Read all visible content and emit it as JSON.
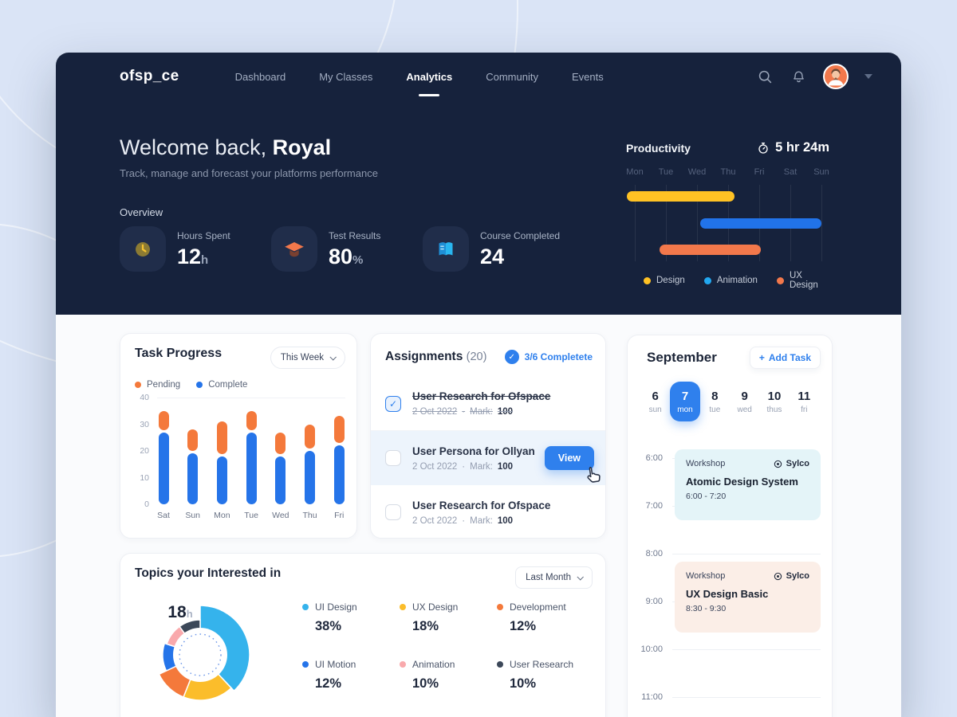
{
  "colors": {
    "accent": "#2F80ED",
    "navy": "#16223C",
    "page_bg": "#DAE4F6"
  },
  "app": {
    "logo": "ofsp_ce",
    "nav": [
      {
        "label": "Dashboard"
      },
      {
        "label": "My Classes"
      },
      {
        "label": "Analytics",
        "active": true
      },
      {
        "label": "Community"
      },
      {
        "label": "Events"
      }
    ]
  },
  "hero": {
    "welcome_prefix": "Welcome back,",
    "welcome_name": "Royal",
    "subtitle": "Track, manage and forecast your platforms performance",
    "overview_label": "Overview",
    "stats": [
      {
        "label": "Hours Spent",
        "value": "12",
        "unit": "h",
        "icon": "clock-icon"
      },
      {
        "label": "Test Results",
        "value": "80",
        "unit": "%",
        "icon": "graduation-cap-icon"
      },
      {
        "label": "Course Completed",
        "value": "24",
        "unit": "",
        "icon": "book-icon"
      }
    ]
  },
  "productivity": {
    "title": "Productivity",
    "duration": "5 hr 24m"
  },
  "task_progress": {
    "title": "Task Progress",
    "filter_label": "This Week",
    "legend": [
      {
        "label": "Pending",
        "color": "#F4793B"
      },
      {
        "label": "Complete",
        "color": "#2574E9"
      }
    ]
  },
  "assignments": {
    "title": "Assignments",
    "count": "(20)",
    "status": "3/6 Completete",
    "items": [
      {
        "title": "User Research for Ofspace",
        "date": "2 Oct 2022",
        "mark_label": "Mark:",
        "mark": "100",
        "completed": true
      },
      {
        "title": "User Persona for Ollyan",
        "date": "2 Oct 2022",
        "mark_label": "Mark:",
        "mark": "100",
        "completed": false,
        "action": "View"
      },
      {
        "title": "User Research for Ofspace",
        "date": "2 Oct 2022",
        "mark_label": "Mark:",
        "mark": "100",
        "completed": false
      }
    ]
  },
  "topics": {
    "title": "Topics your Interested in",
    "filter_label": "Last Month",
    "center_value": "18",
    "center_unit": "h"
  },
  "calendar": {
    "month": "September",
    "add_task_label": "Add Task",
    "days": [
      {
        "num": "6",
        "name": "sun"
      },
      {
        "num": "7",
        "name": "mon",
        "selected": true
      },
      {
        "num": "8",
        "name": "tue"
      },
      {
        "num": "9",
        "name": "wed"
      },
      {
        "num": "10",
        "name": "thus"
      },
      {
        "num": "11",
        "name": "fri"
      }
    ],
    "times": [
      "6:00",
      "7:00",
      "8:00",
      "9:00",
      "10:00",
      "11:00"
    ],
    "events": [
      {
        "tag": "Workshop",
        "location": "Sylco",
        "title": "Atomic Design System",
        "time": "6:00 - 7:20",
        "bg": "#E4F4F8"
      },
      {
        "tag": "Workshop",
        "location": "Sylco",
        "title": "UX Design Basic",
        "time": "8:30 - 9:30",
        "bg": "#FBEEE7"
      }
    ]
  },
  "chart_data": [
    {
      "id": "productivity_gantt",
      "type": "gantt",
      "x": [
        "Mon",
        "Tue",
        "Wed",
        "Thu",
        "Fri",
        "Sat",
        "Sun"
      ],
      "series": [
        {
          "name": "Design",
          "color": "#FFC224",
          "start": -0.25,
          "end": 3.2
        },
        {
          "name": "Animation",
          "color": "#2173E9",
          "start": 2.1,
          "end": 6.0
        },
        {
          "name": "UX Design",
          "color": "#F2784B",
          "start": 0.8,
          "end": 4.05
        }
      ],
      "legend_position": "bottom",
      "legend_dot_colors": [
        "#FFC224",
        "#22A8F0",
        "#F2784B"
      ]
    },
    {
      "id": "task_progress",
      "type": "bar",
      "stacked": true,
      "categories": [
        "Sat",
        "Sun",
        "Mon",
        "Tue",
        "Wed",
        "Thu",
        "Fri"
      ],
      "series": [
        {
          "name": "Complete",
          "color": "#2574E9",
          "values": [
            27,
            19,
            18,
            27,
            18,
            20,
            22
          ]
        },
        {
          "name": "Pending",
          "color": "#F4793B",
          "values": [
            8,
            9,
            13,
            8,
            9,
            10,
            11
          ]
        }
      ],
      "ylim": [
        0,
        40
      ],
      "yticks": [
        0,
        10,
        20,
        30,
        40
      ]
    },
    {
      "id": "topics_donut",
      "type": "pie",
      "donut": true,
      "center_label": "18h",
      "slices": [
        {
          "name": "UI Design",
          "value": 38,
          "pct": "38%",
          "color": "#35B3EC",
          "radius": 62
        },
        {
          "name": "UX Design",
          "value": 18,
          "pct": "18%",
          "color": "#FBBD2B",
          "radius": 57
        },
        {
          "name": "Development",
          "value": 12,
          "pct": "12%",
          "color": "#F4793B",
          "radius": 57
        },
        {
          "name": "UI Motion",
          "value": 12,
          "pct": "12%",
          "color": "#2574E9",
          "radius": 47
        },
        {
          "name": "Animation",
          "value": 10,
          "pct": "10%",
          "color": "#F9A9AC",
          "radius": 44
        },
        {
          "name": "User Research",
          "value": 10,
          "pct": "10%",
          "color": "#3C4859",
          "radius": 44
        }
      ]
    }
  ]
}
